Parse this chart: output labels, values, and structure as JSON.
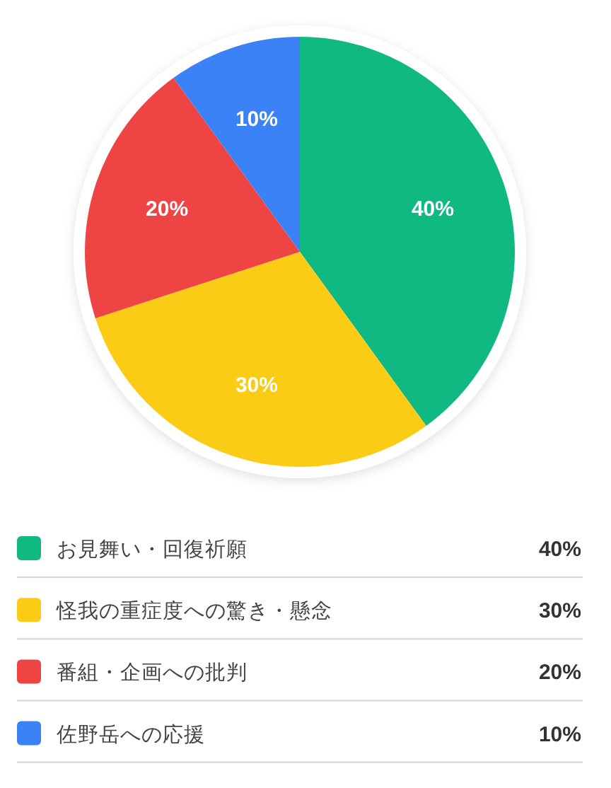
{
  "chart_data": {
    "type": "pie",
    "categories": [
      "お見舞い・回復祈願",
      "怪我の重症度への驚き・懸念",
      "番組・企画への批判",
      "佐野岳への応援"
    ],
    "values": [
      40,
      30,
      20,
      10
    ],
    "value_labels": [
      "40%",
      "30%",
      "20%",
      "10%"
    ],
    "colors": [
      "#10b981",
      "#facc15",
      "#ef4444",
      "#3b82f6"
    ],
    "legend": "bottom"
  }
}
